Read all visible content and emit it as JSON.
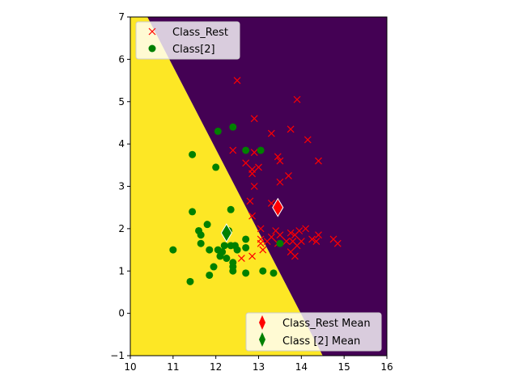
{
  "chart_data": {
    "type": "scatter",
    "title": "",
    "xlabel": "",
    "ylabel": "",
    "xlim": [
      10,
      16
    ],
    "ylim": [
      -1,
      7
    ],
    "xticks": [
      "10",
      "11",
      "12",
      "13",
      "14",
      "15",
      "16"
    ],
    "yticks": [
      "−1",
      "0",
      "1",
      "2",
      "3",
      "4",
      "5",
      "6",
      "7"
    ],
    "grid": false,
    "background_regions": {
      "decision_boundary": [
        [
          10.4,
          7
        ],
        [
          14.5,
          -1
        ]
      ],
      "left_region_color": "#fde725",
      "right_region_color": "#440154"
    },
    "series": [
      {
        "name": "Class_Rest",
        "marker": "x",
        "color": "#ff0000",
        "points": [
          [
            12.5,
            5.5
          ],
          [
            13.9,
            5.05
          ],
          [
            12.9,
            4.6
          ],
          [
            13.3,
            4.25
          ],
          [
            13.75,
            4.35
          ],
          [
            14.15,
            4.1
          ],
          [
            12.4,
            3.85
          ],
          [
            12.9,
            3.8
          ],
          [
            13.45,
            3.7
          ],
          [
            12.7,
            3.55
          ],
          [
            13.5,
            3.6
          ],
          [
            14.4,
            3.6
          ],
          [
            12.85,
            3.4
          ],
          [
            13.0,
            3.45
          ],
          [
            12.85,
            3.3
          ],
          [
            13.7,
            3.25
          ],
          [
            13.5,
            3.1
          ],
          [
            12.9,
            3.0
          ],
          [
            12.8,
            2.65
          ],
          [
            13.3,
            2.6
          ],
          [
            12.85,
            2.3
          ],
          [
            13.05,
            2.0
          ],
          [
            13.4,
            1.95
          ],
          [
            13.95,
            1.95
          ],
          [
            14.1,
            2.0
          ],
          [
            13.75,
            1.9
          ],
          [
            13.3,
            1.8
          ],
          [
            13.5,
            1.85
          ],
          [
            13.85,
            1.85
          ],
          [
            14.25,
            1.75
          ],
          [
            14.4,
            1.85
          ],
          [
            13.05,
            1.75
          ],
          [
            13.2,
            1.7
          ],
          [
            13.45,
            1.65
          ],
          [
            13.65,
            1.7
          ],
          [
            13.8,
            1.7
          ],
          [
            14.0,
            1.7
          ],
          [
            14.35,
            1.7
          ],
          [
            14.75,
            1.75
          ],
          [
            14.85,
            1.65
          ],
          [
            13.05,
            1.65
          ],
          [
            13.9,
            1.6
          ],
          [
            13.1,
            1.5
          ],
          [
            13.75,
            1.45
          ],
          [
            12.85,
            1.35
          ],
          [
            13.85,
            1.35
          ],
          [
            12.6,
            1.3
          ]
        ]
      },
      {
        "name": "Class[2]",
        "marker": "o",
        "color": "#008000",
        "points": [
          [
            12.05,
            4.3
          ],
          [
            12.4,
            4.4
          ],
          [
            12.7,
            3.85
          ],
          [
            13.05,
            3.85
          ],
          [
            11.45,
            3.75
          ],
          [
            12.0,
            3.45
          ],
          [
            11.45,
            2.4
          ],
          [
            12.35,
            2.45
          ],
          [
            11.8,
            2.1
          ],
          [
            11.6,
            1.95
          ],
          [
            11.65,
            1.85
          ],
          [
            12.3,
            1.95
          ],
          [
            11.65,
            1.65
          ],
          [
            12.7,
            1.75
          ],
          [
            13.5,
            1.65
          ],
          [
            12.2,
            1.6
          ],
          [
            12.35,
            1.6
          ],
          [
            12.45,
            1.6
          ],
          [
            12.7,
            1.55
          ],
          [
            11.0,
            1.5
          ],
          [
            11.85,
            1.5
          ],
          [
            12.05,
            1.5
          ],
          [
            12.15,
            1.45
          ],
          [
            12.5,
            1.5
          ],
          [
            12.1,
            1.35
          ],
          [
            12.25,
            1.3
          ],
          [
            12.4,
            1.2
          ],
          [
            12.4,
            1.1
          ],
          [
            11.95,
            1.1
          ],
          [
            13.1,
            1.0
          ],
          [
            12.4,
            1.0
          ],
          [
            12.7,
            0.95
          ],
          [
            13.35,
            0.95
          ],
          [
            11.85,
            0.9
          ],
          [
            11.4,
            0.75
          ]
        ]
      }
    ],
    "means": [
      {
        "name": "Class_Rest Mean",
        "x": 13.45,
        "y": 2.5,
        "color": "#ff0000",
        "marker": "diamond"
      },
      {
        "name": "Class [2] Mean",
        "x": 12.25,
        "y": 1.9,
        "color": "#008000",
        "marker": "diamond"
      }
    ],
    "legends": [
      {
        "placement": "upper-left",
        "entries": [
          "Class_Rest",
          "Class[2]"
        ]
      },
      {
        "placement": "lower-right",
        "entries": [
          "Class_Rest Mean",
          "Class [2] Mean"
        ]
      }
    ]
  }
}
